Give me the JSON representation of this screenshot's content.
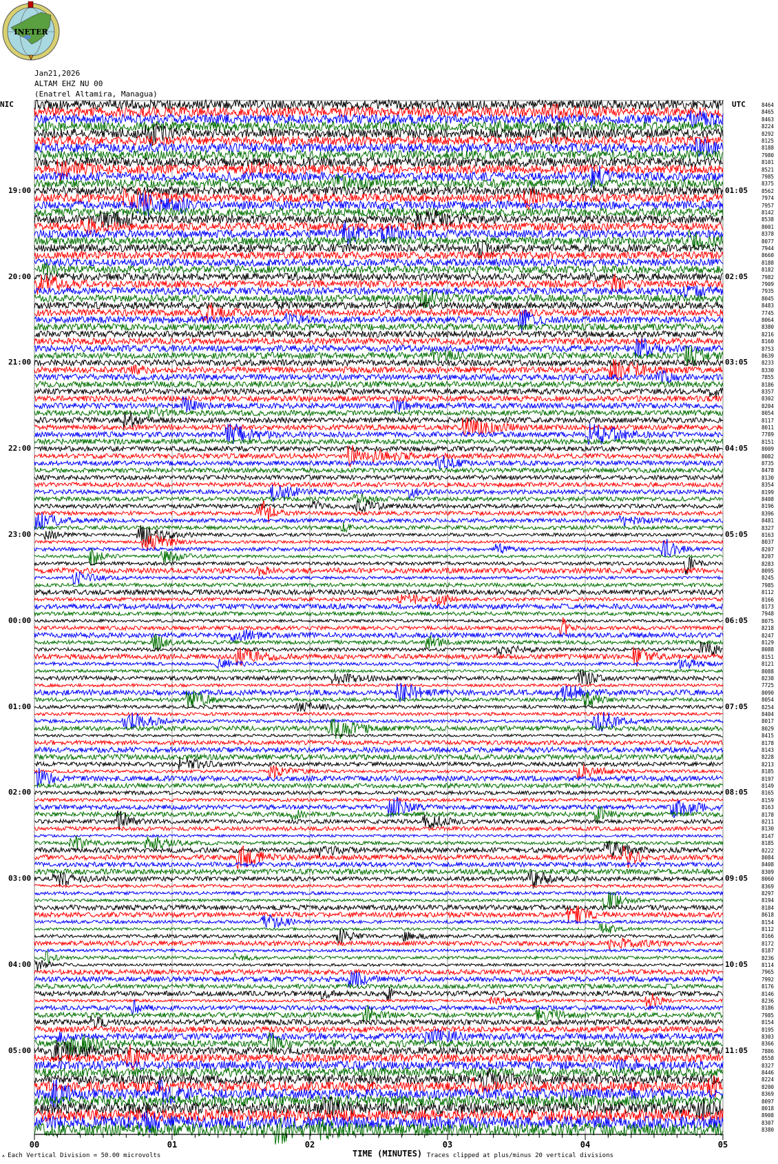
{
  "logo": {
    "text": "INETER",
    "colors": {
      "ring": "#d8d070",
      "globe": "#a8d8e0",
      "land": "#5aa040"
    }
  },
  "header": {
    "date": "Jan21,2026",
    "station": "ALTAM EHZ NU 00",
    "location": "(Enatrel Altamira, Managua)"
  },
  "left_zone": "NIC",
  "right_zone": "UTC",
  "footer": {
    "scale": "Each Vertical Division =    50.00 microvolts",
    "xlabel": "TIME (MINUTES)",
    "clip_note": "Traces clipped at plus/minus 20 vertical divisions"
  },
  "chart_data": {
    "type": "line",
    "subtype": "helicorder",
    "xlabel": "TIME (MINUTES)",
    "xlim": [
      0,
      5
    ],
    "x_ticks": [
      "00",
      "01",
      "02",
      "03",
      "04",
      "05"
    ],
    "grid": "vertical lines each minute",
    "trace_colors": [
      "#000000",
      "#ff0000",
      "#0000ff",
      "#007000"
    ],
    "rows_per_hour": 12,
    "left_hour_labels": [
      "19:00",
      "20:00",
      "21:00",
      "22:00",
      "23:00",
      "00:00",
      "01:00",
      "02:00",
      "03:00",
      "04:00",
      "05:00"
    ],
    "right_hour_labels": [
      "01:05",
      "02:05",
      "03:05",
      "04:05",
      "05:05",
      "06:05",
      "07:05",
      "08:05",
      "09:05",
      "10:05",
      "11:05"
    ],
    "row_counts": [
      8464,
      8465,
      8463,
      8224,
      8292,
      8125,
      8188,
      7980,
      8101,
      8521,
      7985,
      8375,
      8562,
      7974,
      7957,
      8142,
      8538,
      8001,
      8378,
      8077,
      7944,
      8660,
      8188,
      8182,
      7982,
      7909,
      7935,
      8045,
      8483,
      7745,
      8064,
      8380,
      8216,
      8160,
      8753,
      8639,
      8233,
      8330,
      7855,
      8186,
      8357,
      8302,
      8204,
      8054,
      8117,
      8011,
      7789,
      8151,
      8009,
      8082,
      8735,
      8478,
      8130,
      8354,
      8199,
      8408,
      8196,
      8396,
      8481,
      8327,
      8163,
      8037,
      8207,
      8207,
      8283,
      8095,
      8245,
      7985,
      8112,
      8166,
      8173,
      7948,
      8075,
      8218,
      8247,
      8129,
      8088,
      8151,
      8121,
      8088,
      8238,
      7725,
      8090,
      8054,
      8254,
      8404,
      8017,
      8029,
      8415,
      8178,
      8143,
      8228,
      8213,
      8185,
      8197,
      8149,
      8165,
      8159,
      8163,
      8178,
      8211,
      8130,
      8147,
      8185,
      8222,
      8084,
      8408,
      8309,
      8060,
      8369,
      8297,
      8194,
      8184,
      8618,
      8154,
      8112,
      8166,
      8172,
      8187,
      8236,
      8114,
      7965,
      7992,
      8176,
      8146,
      8236,
      8186,
      7985,
      8154,
      8195,
      8303,
      8366,
      7886,
      8558,
      8327,
      8446,
      8224,
      8200,
      8369,
      8097,
      8018,
      8908,
      8307,
      8380
    ]
  }
}
